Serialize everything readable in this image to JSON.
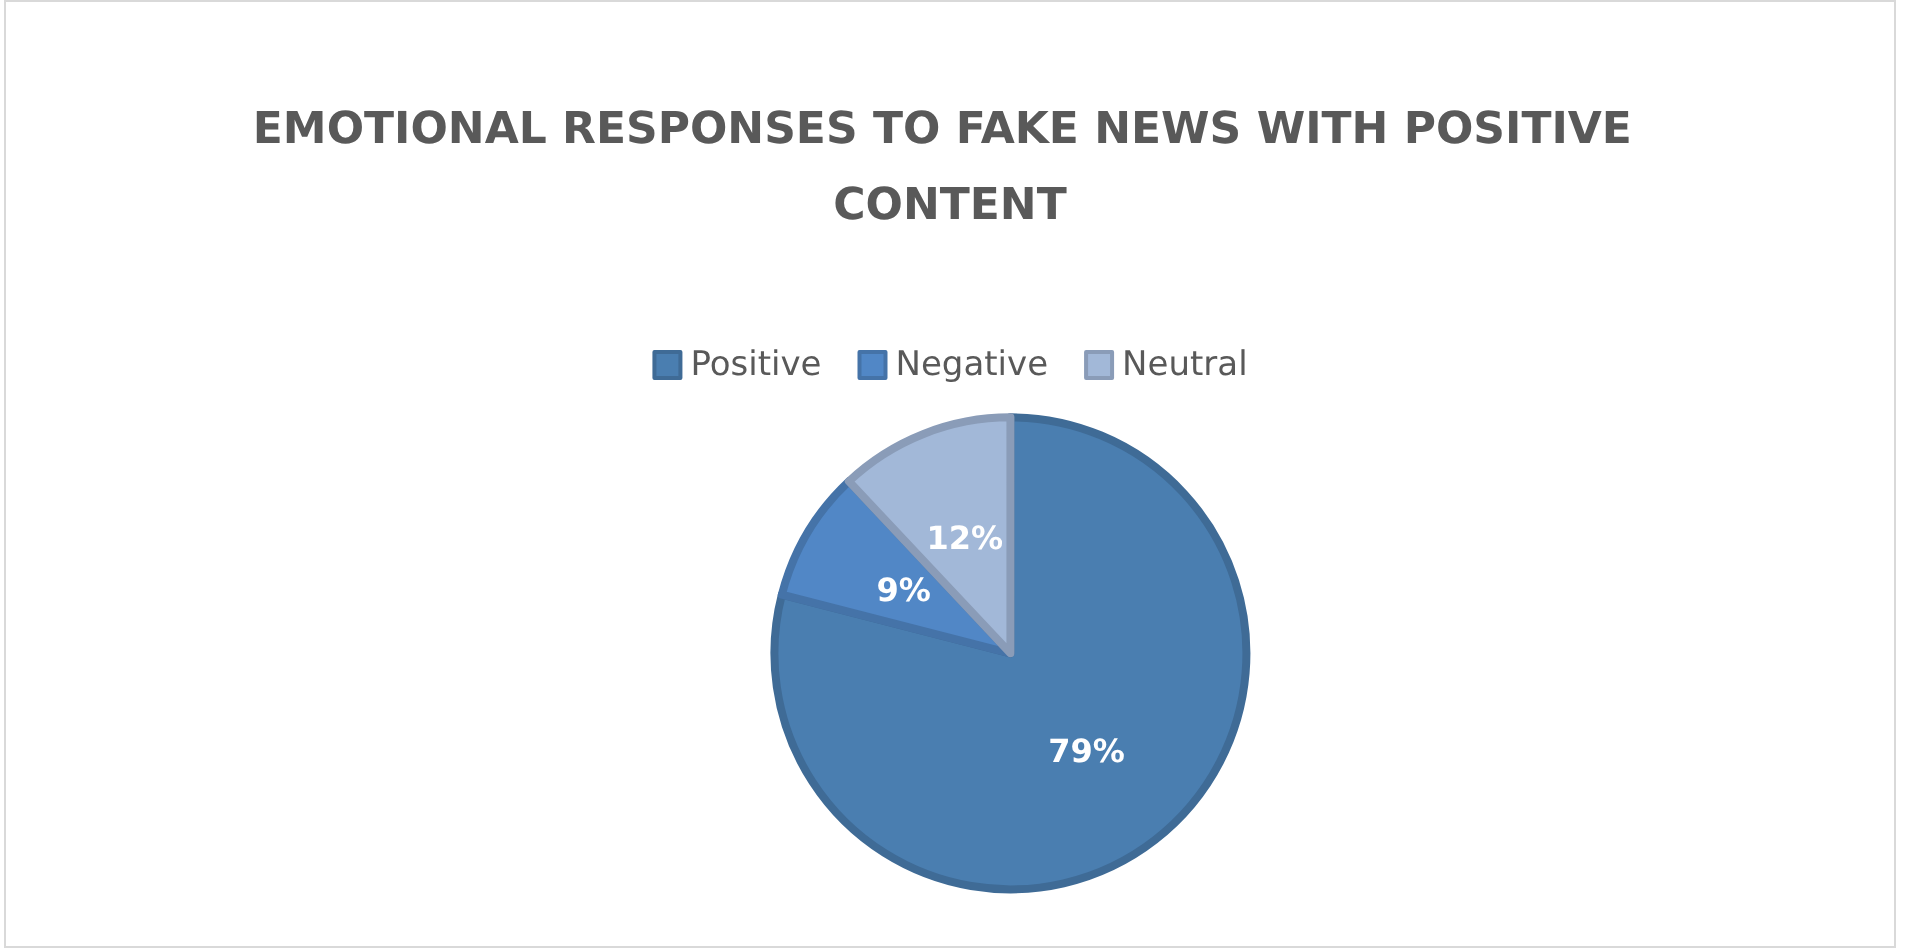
{
  "chart_data": {
    "type": "pie",
    "title": "EMOTIONAL RESPONSES TO FAKE NEWS WITH POSITIVE CONTENT",
    "categories": [
      "Positive",
      "Negative",
      "Neutral"
    ],
    "values": [
      79,
      9,
      12
    ],
    "value_labels": [
      "79%",
      "9%",
      "12%"
    ],
    "colors": [
      "#4a7eb0",
      "#5187c6",
      "#a2b8d8"
    ],
    "legend": "top"
  }
}
